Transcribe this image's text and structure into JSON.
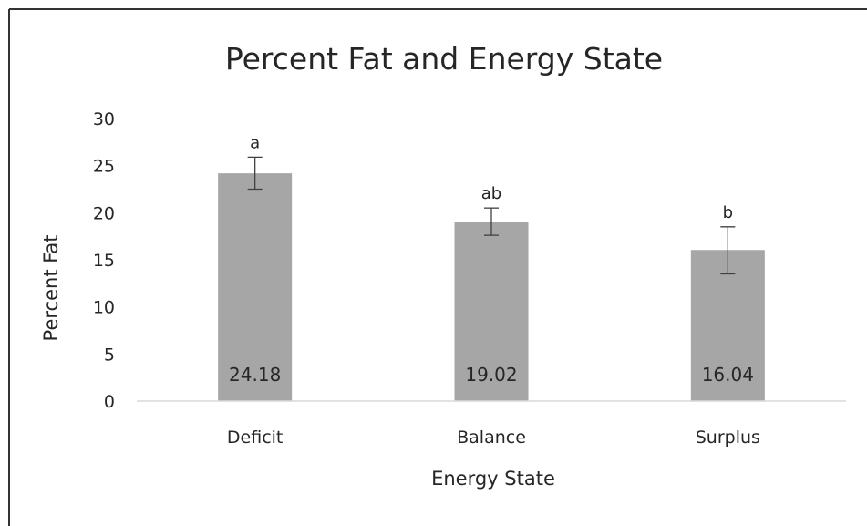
{
  "chart_data": {
    "type": "bar",
    "title": "Percent Fat and Energy State",
    "xlabel": "Energy State",
    "ylabel": "Percent Fat",
    "categories": [
      "Deficit",
      "Balance",
      "Surplus"
    ],
    "values": [
      24.18,
      19.02,
      16.04
    ],
    "data_labels": [
      "24.18",
      "19.02",
      "16.04"
    ],
    "error_bars": [
      {
        "low": 22.5,
        "high": 25.9
      },
      {
        "low": 17.6,
        "high": 20.5
      },
      {
        "low": 13.5,
        "high": 18.5
      }
    ],
    "significance_labels": [
      "a",
      "ab",
      "b"
    ],
    "ylim": [
      0,
      30
    ],
    "yticks": [
      0,
      5,
      10,
      15,
      20,
      25,
      30
    ],
    "grid": false,
    "legend": "none",
    "bar_color": "#a6a6a6",
    "error_bar_color": "#404040",
    "axis_color": "#d9d9d9",
    "text_color": "#262626",
    "frame_color": "#333333"
  }
}
